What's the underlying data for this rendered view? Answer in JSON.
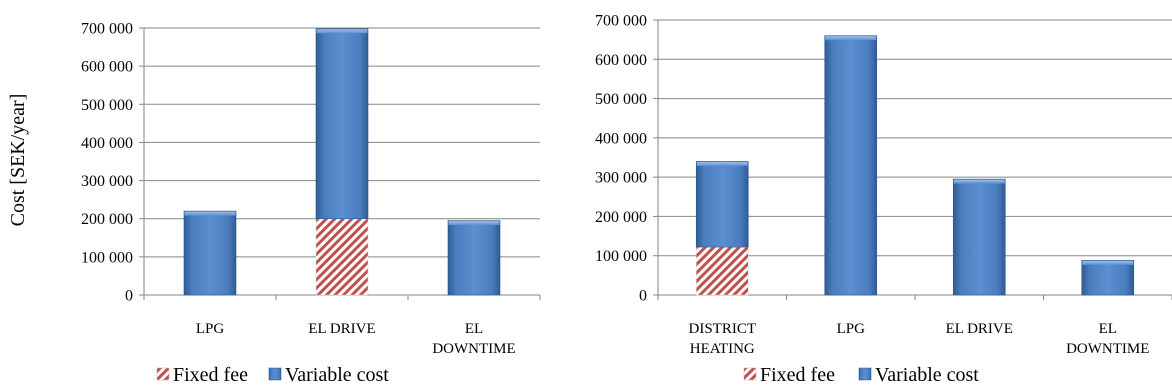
{
  "chart_data": [
    {
      "type": "bar",
      "stacked": true,
      "ylabel": "Cost [SEK/year]",
      "ylim": [
        0,
        700000
      ],
      "yticks": [
        0,
        100000,
        200000,
        300000,
        400000,
        500000,
        600000,
        700000
      ],
      "ytick_labels": [
        "0",
        "100 000",
        "200 000",
        "300 000",
        "400 000",
        "500 000",
        "600 000",
        "700 000"
      ],
      "grid": true,
      "legend_position": "bottom",
      "categories": [
        [
          "LPG"
        ],
        [
          "EL DRIVE"
        ],
        [
          "EL",
          "DOWNTIME"
        ]
      ],
      "series": [
        {
          "name": "Fixed fee",
          "values": [
            0,
            200000,
            0
          ]
        },
        {
          "name": "Variable cost",
          "values": [
            220000,
            498000,
            195000
          ]
        }
      ]
    },
    {
      "type": "bar",
      "stacked": true,
      "ylabel": "",
      "ylim": [
        0,
        700000
      ],
      "yticks": [
        0,
        100000,
        200000,
        300000,
        400000,
        500000,
        600000,
        700000
      ],
      "ytick_labels": [
        "0",
        "100 000",
        "200 000",
        "300 000",
        "400 000",
        "500 000",
        "600 000",
        "700 000"
      ],
      "grid": true,
      "legend_position": "bottom",
      "categories": [
        [
          "DISTRICT",
          "HEATING"
        ],
        [
          "LPG"
        ],
        [
          "EL DRIVE"
        ],
        [
          "EL",
          "DOWNTIME"
        ]
      ],
      "series": [
        {
          "name": "Fixed fee",
          "values": [
            122000,
            0,
            0,
            0
          ]
        },
        {
          "name": "Variable cost",
          "values": [
            218000,
            660000,
            295000,
            88000
          ]
        }
      ]
    }
  ],
  "colors": {
    "variable": "#4f81bd",
    "variable_dark": "#2c5a8f",
    "fixed": "#c0504d",
    "grid": "#868686"
  }
}
